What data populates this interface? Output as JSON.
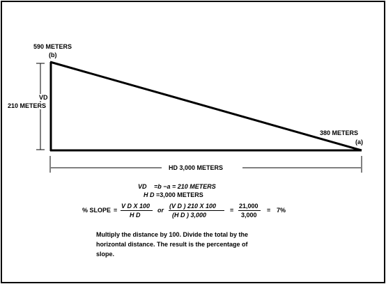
{
  "diagram": {
    "point_b": {
      "elevation": "590 METERS",
      "label": "(b)"
    },
    "point_a": {
      "elevation": "380 METERS",
      "label": "(a)"
    },
    "vertical_distance": {
      "abbr": "VD",
      "value": "210 METERS"
    },
    "horizontal_distance": "HD 3,000 METERS"
  },
  "formulas": {
    "vd": {
      "lhs": "VD",
      "rhs": "=b   −a  =  210  METERS"
    },
    "hd": {
      "lhs": "H D",
      "rhs": "=3,000 METERS"
    },
    "slope": {
      "label": "% SLOPE",
      "eq1": "=",
      "f1_num": "V D X  100",
      "f1_den": "H D",
      "or": "or",
      "f2_num": "(V D   )  210  X  100",
      "f2_den": "(H D  )     3,000",
      "eq2": "=",
      "f3_num": "21,000",
      "f3_den": "3,000",
      "eq3": "=",
      "result": "7%"
    }
  },
  "note": "Multiply the distance by 100.  Divide the total by the horizontal distance. The result is the percentage of slope."
}
